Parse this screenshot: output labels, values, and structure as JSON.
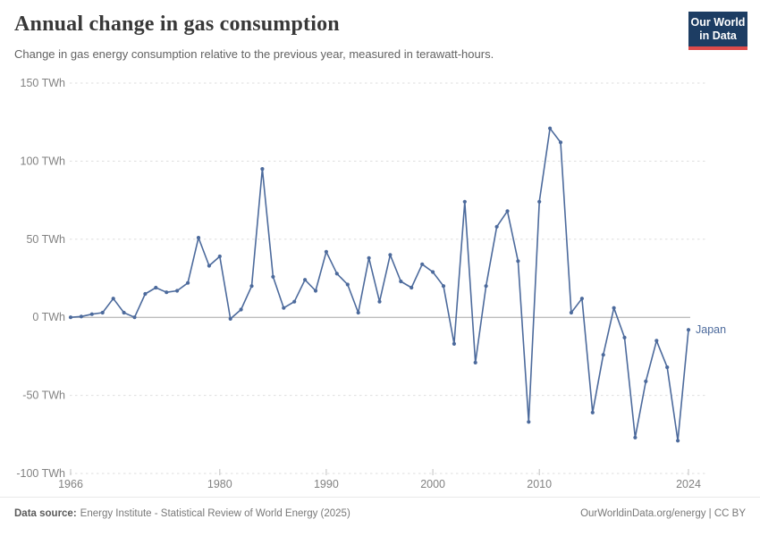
{
  "header": {
    "title": "Annual change in gas consumption",
    "subtitle": "Change in gas energy consumption relative to the previous year, measured in terawatt-hours.",
    "logo": {
      "line1": "Our World",
      "line2": "in Data",
      "navy": "#1d3d63",
      "red": "#dd4b4b"
    }
  },
  "footer": {
    "source_label": "Data source:",
    "source_text": "Energy Institute - Statistical Review of World Energy (2025)",
    "link_text": "OurWorldinData.org/energy | CC BY"
  },
  "chart_data": {
    "type": "line",
    "title": "Annual change in gas consumption",
    "subtitle": "Change in gas energy consumption relative to the previous year, measured in terawatt-hours.",
    "unit": "TWh",
    "xlim": [
      1966,
      2024
    ],
    "ylim": [
      -100,
      150
    ],
    "x_ticks": [
      1966,
      1980,
      1990,
      2000,
      2010,
      2024
    ],
    "x_tick_labels": [
      "1966",
      "1980",
      "1990",
      "2000",
      "2010",
      "2024"
    ],
    "y_ticks": [
      150,
      100,
      50,
      0,
      -50,
      -100
    ],
    "y_tick_labels": [
      "150 TWh",
      "100 TWh",
      "50 TWh",
      "0 TWh",
      "-50 TWh",
      "-100 TWh"
    ],
    "grid": "horizontal-dashed",
    "zero_line": true,
    "legend": "end-of-line-label",
    "end_label": "Japan",
    "series": [
      {
        "name": "Japan",
        "color": "#4c6a9c",
        "years": [
          1966,
          1967,
          1968,
          1969,
          1970,
          1971,
          1972,
          1973,
          1974,
          1975,
          1976,
          1977,
          1978,
          1979,
          1980,
          1981,
          1982,
          1983,
          1984,
          1985,
          1986,
          1987,
          1988,
          1989,
          1990,
          1991,
          1992,
          1993,
          1994,
          1995,
          1996,
          1997,
          1998,
          1999,
          2000,
          2001,
          2002,
          2003,
          2004,
          2005,
          2006,
          2007,
          2008,
          2009,
          2010,
          2011,
          2012,
          2013,
          2014,
          2015,
          2016,
          2017,
          2018,
          2019,
          2020,
          2021,
          2022,
          2023,
          2024
        ],
        "values": [
          0,
          0.5,
          2,
          3,
          12,
          3,
          0,
          15,
          19,
          16,
          17,
          22,
          51,
          33,
          39,
          -1,
          5,
          20,
          95,
          26,
          6,
          10,
          24,
          17,
          42,
          28,
          21,
          3,
          38,
          10,
          40,
          23,
          19,
          34,
          29,
          20,
          -17,
          74,
          -29,
          20,
          58,
          68,
          36,
          -67,
          74,
          121,
          112,
          3,
          12,
          -61,
          -24,
          6,
          -13,
          -77,
          -41,
          -15,
          -32,
          -79,
          -8
        ]
      }
    ]
  }
}
